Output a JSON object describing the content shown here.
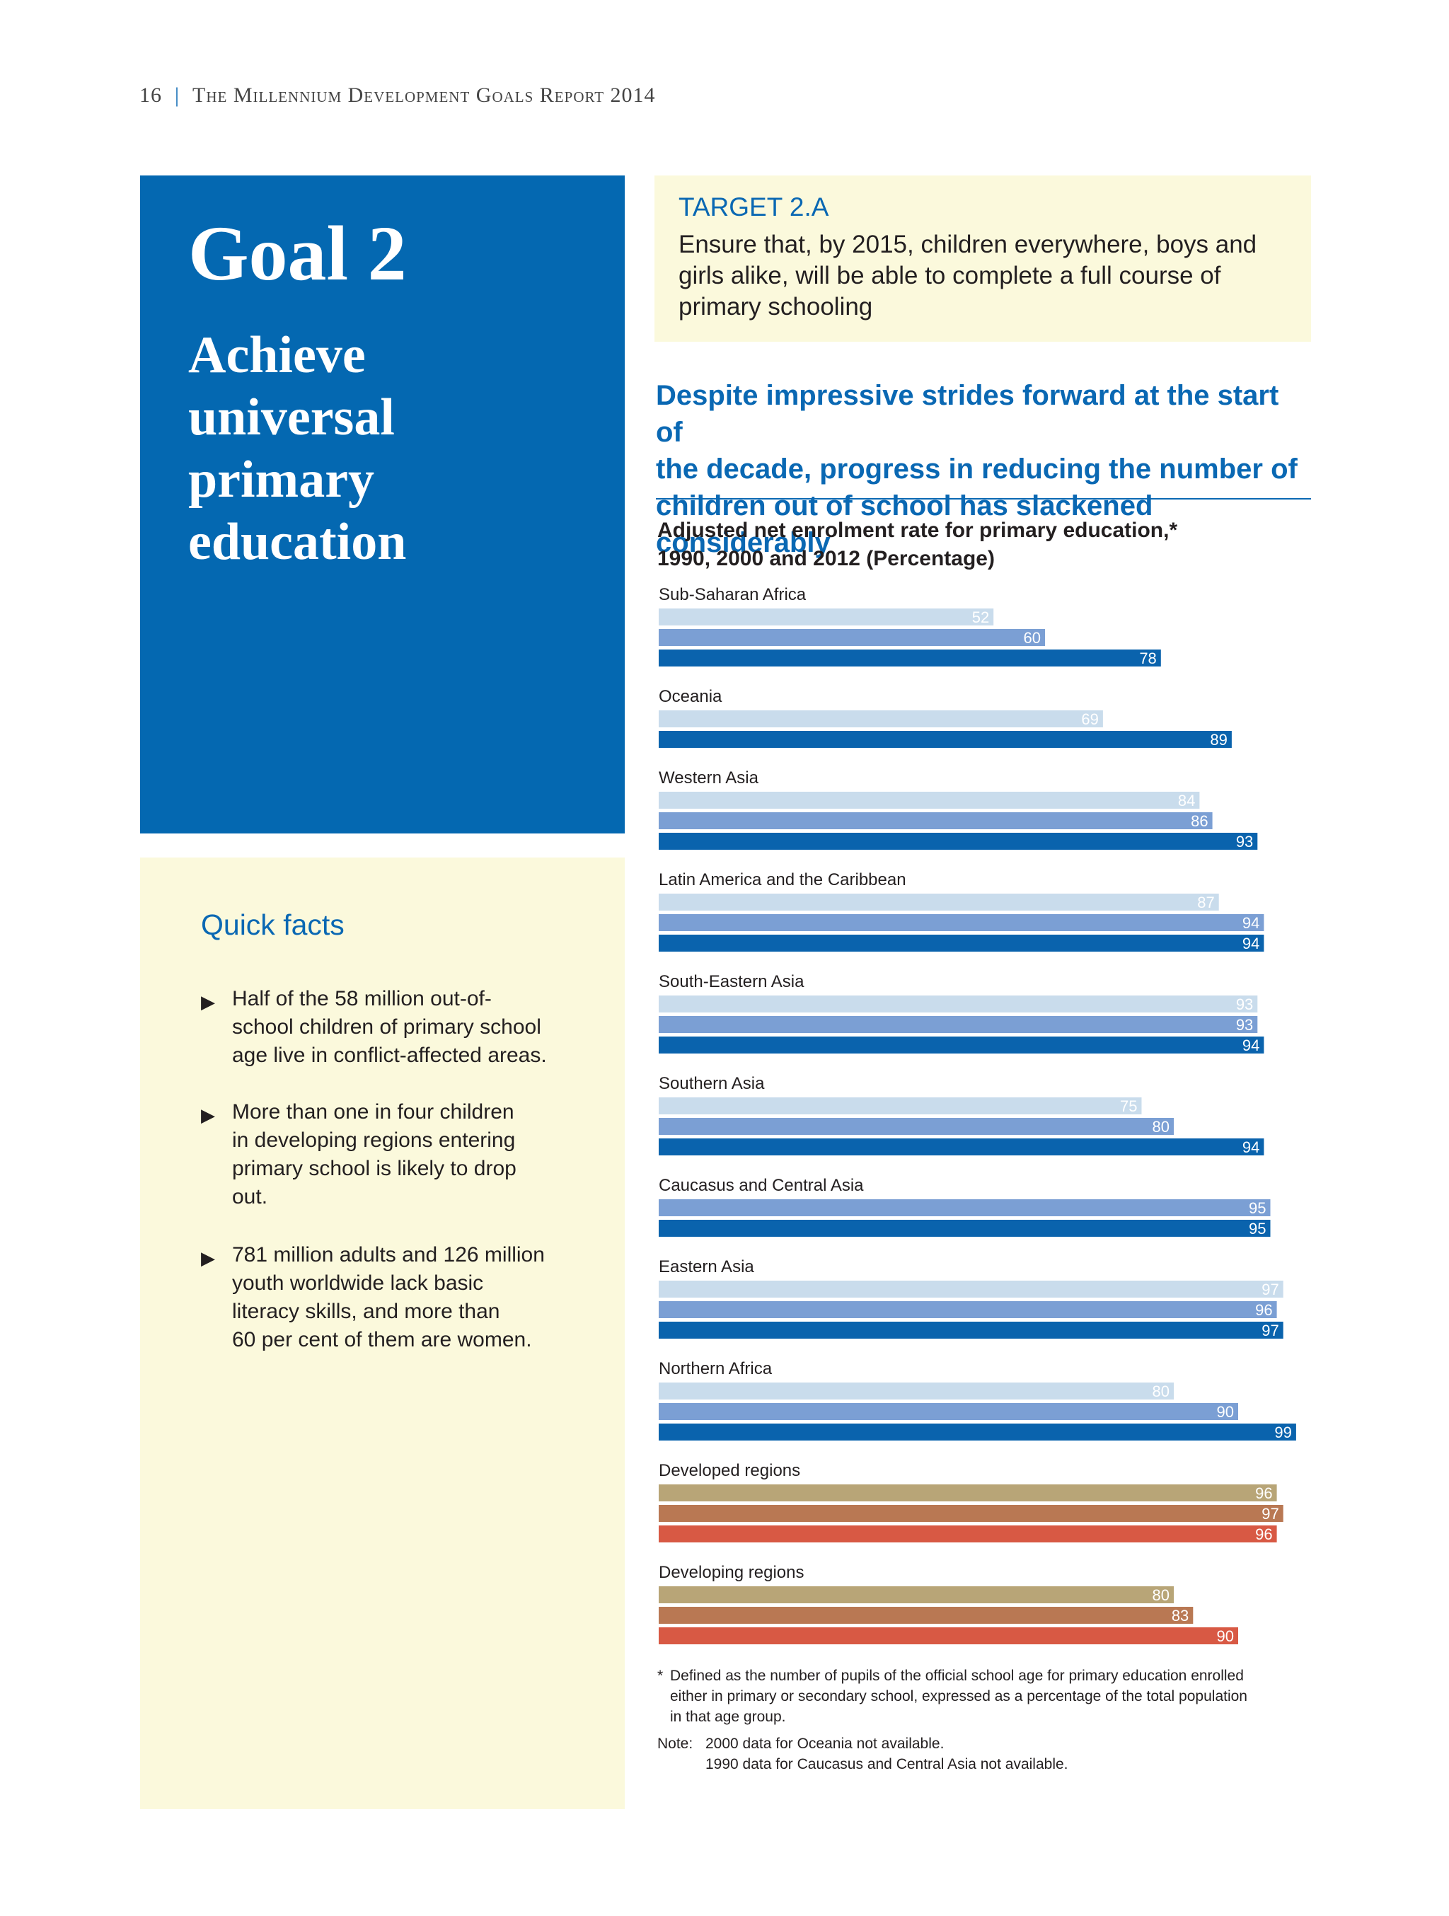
{
  "header": {
    "page_number": "16",
    "separator": "|",
    "report_title": "The Millennium Development Goals Report 2014"
  },
  "goal": {
    "title": "Goal 2",
    "subtitle_lines": [
      "Achieve",
      "universal",
      "primary",
      "education"
    ]
  },
  "quick_facts": {
    "title": "Quick facts",
    "items": [
      [
        "Half of the 58 million out-of-",
        "school children of primary school",
        "age live in conflict-affected areas."
      ],
      [
        "More than one in four children",
        "in developing regions entering",
        "primary school is likely to drop",
        "out."
      ],
      [
        "781 million adults and 126 million",
        "youth worldwide lack basic",
        "literacy skills, and more than",
        "60 per cent of them are women."
      ]
    ]
  },
  "target": {
    "title": "TARGET 2.A",
    "text_lines": [
      "Ensure that, by 2015, children everywhere, boys and",
      "girls alike, will be able to complete a full course of",
      "primary schooling"
    ]
  },
  "headline_lines": [
    "Despite impressive strides forward at the start of",
    "the decade, progress in reducing the number of",
    "children out of school has slackened considerably"
  ],
  "chart_title_lines": [
    "Adjusted net enrolment rate for primary education,*",
    "1990, 2000 and 2012 (Percentage)"
  ],
  "chart_data": {
    "type": "bar",
    "orientation": "horizontal",
    "series_names": [
      "1990",
      "2000",
      "2012"
    ],
    "categories": [
      {
        "name": "Sub-Saharan Africa",
        "values": [
          52,
          60,
          78
        ],
        "group": "region"
      },
      {
        "name": "Oceania",
        "values": [
          69,
          null,
          89
        ],
        "group": "region"
      },
      {
        "name": "Western Asia",
        "values": [
          84,
          86,
          93
        ],
        "group": "region"
      },
      {
        "name": "Latin America and the Caribbean",
        "values": [
          87,
          94,
          94
        ],
        "group": "region"
      },
      {
        "name": "South-Eastern Asia",
        "values": [
          93,
          93,
          94
        ],
        "group": "region"
      },
      {
        "name": "Southern Asia",
        "values": [
          75,
          80,
          94
        ],
        "group": "region"
      },
      {
        "name": "Caucasus and Central Asia",
        "values": [
          null,
          95,
          95
        ],
        "group": "region"
      },
      {
        "name": "Eastern Asia",
        "values": [
          97,
          96,
          97
        ],
        "group": "region"
      },
      {
        "name": "Northern Africa",
        "values": [
          80,
          90,
          99
        ],
        "group": "region"
      },
      {
        "name": "Developed regions",
        "values": [
          96,
          97,
          96
        ],
        "group": "aggregate"
      },
      {
        "name": "Developing regions",
        "values": [
          80,
          83,
          90
        ],
        "group": "aggregate"
      }
    ],
    "xlim": [
      0,
      100
    ],
    "xticks": [
      "0",
      "20",
      "40",
      "60",
      "80",
      "100"
    ],
    "colors": {
      "region": [
        "#c9dcec",
        "#7b9fd4",
        "#0a63ad"
      ],
      "aggregate": [
        "#b8a577",
        "#b97853",
        "#d85944"
      ]
    },
    "legend_position": "bottom"
  },
  "footnote": {
    "marker": "*",
    "lines": [
      "Defined as the number of pupils of the official school age for primary education enrolled",
      "either in primary or secondary school, expressed as a percentage of the total population",
      "in that age group."
    ]
  },
  "note": {
    "label": "Note:",
    "lines": [
      "2000 data for Oceania not available.",
      "1990 data for Caucasus and Central Asia not available."
    ]
  }
}
